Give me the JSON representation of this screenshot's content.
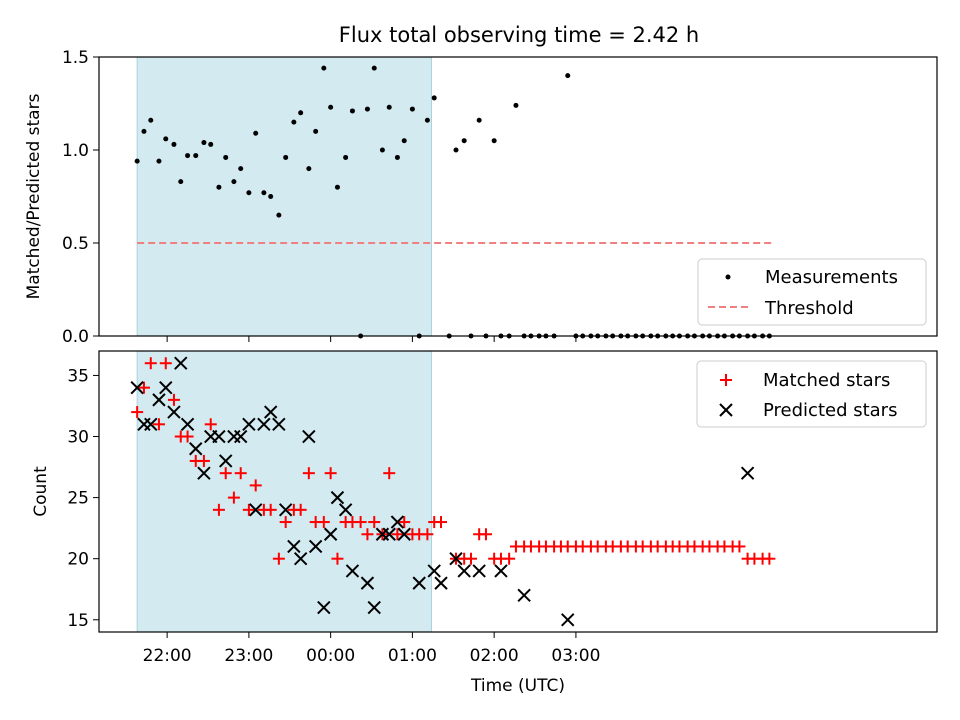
{
  "figure_title": "Flux total observing time = 2.42 h",
  "chart_data": [
    {
      "type": "scatter",
      "ylabel": "Matched/Predicted stars",
      "ylim": [
        0,
        1.5
      ],
      "xlim_minutes": [
        -170,
        445
      ],
      "y_ticks": [
        {
          "value": 0.0,
          "label": "0.0"
        },
        {
          "value": 0.5,
          "label": "0.5"
        },
        {
          "value": 1.0,
          "label": "1.0"
        },
        {
          "value": 1.5,
          "label": "1.5"
        }
      ],
      "shaded_region_minutes": [
        -142,
        74
      ],
      "shade_color": "#d3eaf1",
      "threshold": {
        "name": "Threshold",
        "value": 0.5,
        "color": "#f08080",
        "x_range_minutes": [
          -142,
          324
        ]
      },
      "legend_position": "lower right",
      "series": [
        {
          "name": "Measurements",
          "color": "#000000",
          "points": [
            [
              -142,
              0.94
            ],
            [
              -137,
              1.1
            ],
            [
              -132,
              1.16
            ],
            [
              -126,
              0.94
            ],
            [
              -121,
              1.06
            ],
            [
              -115,
              1.03
            ],
            [
              -110,
              0.83
            ],
            [
              -105,
              0.97
            ],
            [
              -99,
              0.97
            ],
            [
              -93,
              1.04
            ],
            [
              -88,
              1.03
            ],
            [
              -82,
              0.8
            ],
            [
              -77,
              0.96
            ],
            [
              -71,
              0.83
            ],
            [
              -66,
              0.9
            ],
            [
              -60,
              0.77
            ],
            [
              -55,
              1.09
            ],
            [
              -49,
              0.77
            ],
            [
              -44,
              0.75
            ],
            [
              -38,
              0.65
            ],
            [
              -33,
              0.96
            ],
            [
              -27,
              1.15
            ],
            [
              -22,
              1.2
            ],
            [
              -16,
              0.9
            ],
            [
              -11,
              1.1
            ],
            [
              -5,
              1.44
            ],
            [
              0,
              1.23
            ],
            [
              5,
              0.8
            ],
            [
              11,
              0.96
            ],
            [
              16,
              1.21
            ],
            [
              22,
              0.0
            ],
            [
              27,
              1.22
            ],
            [
              32,
              1.44
            ],
            [
              38,
              1.0
            ],
            [
              43,
              1.23
            ],
            [
              49,
              0.96
            ],
            [
              54,
              1.05
            ],
            [
              60,
              1.22
            ],
            [
              65,
              0.0
            ],
            [
              71,
              1.16
            ],
            [
              76,
              1.28
            ],
            [
              87,
              0.0
            ],
            [
              92,
              1.0
            ],
            [
              98,
              1.05
            ],
            [
              103,
              0.0
            ],
            [
              109,
              1.16
            ],
            [
              114,
              0.0
            ],
            [
              120,
              1.05
            ],
            [
              125,
              0.0
            ],
            [
              131,
              0.0
            ],
            [
              136,
              1.24
            ],
            [
              142,
              0.0
            ],
            [
              147,
              0.0
            ],
            [
              153,
              0.0
            ],
            [
              158,
              0.0
            ],
            [
              164,
              0.0
            ],
            [
              174,
              1.4
            ],
            [
              180,
              0.0
            ],
            [
              185,
              0.0
            ],
            [
              191,
              0.0
            ],
            [
              196,
              0.0
            ],
            [
              202,
              0.0
            ],
            [
              207,
              0.0
            ],
            [
              213,
              0.0
            ],
            [
              218,
              0.0
            ],
            [
              224,
              0.0
            ],
            [
              229,
              0.0
            ],
            [
              235,
              0.0
            ],
            [
              240,
              0.0
            ],
            [
              246,
              0.0
            ],
            [
              251,
              0.0
            ],
            [
              256,
              0.0
            ],
            [
              262,
              0.0
            ],
            [
              267,
              0.0
            ],
            [
              273,
              0.0
            ],
            [
              278,
              0.0
            ],
            [
              284,
              0.0
            ],
            [
              289,
              0.0
            ],
            [
              295,
              0.0
            ],
            [
              300,
              0.0
            ],
            [
              306,
              0.0
            ],
            [
              311,
              0.0
            ],
            [
              317,
              0.0
            ],
            [
              322,
              0.0
            ]
          ]
        }
      ]
    },
    {
      "type": "scatter",
      "xlabel": "Time (UTC)",
      "ylabel": "Count",
      "ylim": [
        14,
        37
      ],
      "xlim_minutes": [
        -170,
        445
      ],
      "x_ticks": [
        {
          "value": -120,
          "label": "22:00"
        },
        {
          "value": -60,
          "label": "23:00"
        },
        {
          "value": 0,
          "label": "00:00"
        },
        {
          "value": 60,
          "label": "01:00"
        },
        {
          "value": 120,
          "label": "02:00"
        },
        {
          "value": 180,
          "label": "03:00"
        }
      ],
      "y_ticks": [
        {
          "value": 15,
          "label": "15"
        },
        {
          "value": 20,
          "label": "20"
        },
        {
          "value": 25,
          "label": "25"
        },
        {
          "value": 30,
          "label": "30"
        },
        {
          "value": 35,
          "label": "35"
        }
      ],
      "shaded_region_minutes": [
        -142,
        74
      ],
      "shade_color": "#d3eaf1",
      "legend_position": "upper right",
      "series": [
        {
          "name": "Matched stars",
          "marker": "plus",
          "color": "#ff0000",
          "points": [
            [
              -142,
              32
            ],
            [
              -137,
              34
            ],
            [
              -132,
              36
            ],
            [
              -126,
              31
            ],
            [
              -121,
              36
            ],
            [
              -115,
              33
            ],
            [
              -110,
              30
            ],
            [
              -105,
              30
            ],
            [
              -99,
              28
            ],
            [
              -93,
              28
            ],
            [
              -88,
              31
            ],
            [
              -82,
              24
            ],
            [
              -77,
              27
            ],
            [
              -71,
              25
            ],
            [
              -66,
              27
            ],
            [
              -60,
              24
            ],
            [
              -55,
              26
            ],
            [
              -49,
              24
            ],
            [
              -44,
              24
            ],
            [
              -38,
              20
            ],
            [
              -33,
              23
            ],
            [
              -27,
              24
            ],
            [
              -22,
              24
            ],
            [
              -16,
              27
            ],
            [
              -11,
              23
            ],
            [
              -5,
              23
            ],
            [
              0,
              27
            ],
            [
              5,
              20
            ],
            [
              11,
              23
            ],
            [
              16,
              23
            ],
            [
              22,
              23
            ],
            [
              27,
              22
            ],
            [
              32,
              23
            ],
            [
              38,
              22
            ],
            [
              43,
              27
            ],
            [
              49,
              22
            ],
            [
              54,
              23
            ],
            [
              60,
              22
            ],
            [
              65,
              22
            ],
            [
              71,
              22
            ],
            [
              76,
              23
            ],
            [
              81,
              23
            ],
            [
              92,
              20
            ],
            [
              98,
              20
            ],
            [
              103,
              20
            ],
            [
              109,
              22
            ],
            [
              114,
              22
            ],
            [
              120,
              20
            ],
            [
              125,
              20
            ],
            [
              131,
              20
            ],
            [
              136,
              21
            ],
            [
              142,
              21
            ],
            [
              147,
              21
            ],
            [
              153,
              21
            ],
            [
              158,
              21
            ],
            [
              164,
              21
            ],
            [
              169,
              21
            ],
            [
              174,
              21
            ],
            [
              180,
              21
            ],
            [
              185,
              21
            ],
            [
              191,
              21
            ],
            [
              196,
              21
            ],
            [
              202,
              21
            ],
            [
              207,
              21
            ],
            [
              213,
              21
            ],
            [
              218,
              21
            ],
            [
              224,
              21
            ],
            [
              229,
              21
            ],
            [
              235,
              21
            ],
            [
              240,
              21
            ],
            [
              246,
              21
            ],
            [
              251,
              21
            ],
            [
              256,
              21
            ],
            [
              262,
              21
            ],
            [
              267,
              21
            ],
            [
              273,
              21
            ],
            [
              278,
              21
            ],
            [
              284,
              21
            ],
            [
              289,
              21
            ],
            [
              295,
              21
            ],
            [
              300,
              21
            ],
            [
              306,
              20
            ],
            [
              311,
              20
            ],
            [
              317,
              20
            ],
            [
              322,
              20
            ]
          ]
        },
        {
          "name": "Predicted stars",
          "marker": "x",
          "color": "#000000",
          "points": [
            [
              -142,
              34
            ],
            [
              -137,
              31
            ],
            [
              -132,
              31
            ],
            [
              -126,
              33
            ],
            [
              -121,
              34
            ],
            [
              -115,
              32
            ],
            [
              -110,
              36
            ],
            [
              -105,
              31
            ],
            [
              -99,
              29
            ],
            [
              -93,
              27
            ],
            [
              -88,
              30
            ],
            [
              -82,
              30
            ],
            [
              -77,
              28
            ],
            [
              -71,
              30
            ],
            [
              -66,
              30
            ],
            [
              -60,
              31
            ],
            [
              -55,
              24
            ],
            [
              -49,
              31
            ],
            [
              -44,
              32
            ],
            [
              -38,
              31
            ],
            [
              -33,
              24
            ],
            [
              -27,
              21
            ],
            [
              -22,
              20
            ],
            [
              -16,
              30
            ],
            [
              -11,
              21
            ],
            [
              -5,
              16
            ],
            [
              0,
              22
            ],
            [
              5,
              25
            ],
            [
              11,
              24
            ],
            [
              16,
              19
            ],
            [
              27,
              18
            ],
            [
              32,
              16
            ],
            [
              38,
              22
            ],
            [
              43,
              22
            ],
            [
              49,
              23
            ],
            [
              54,
              22
            ],
            [
              65,
              18
            ],
            [
              76,
              19
            ],
            [
              81,
              18
            ],
            [
              92,
              20
            ],
            [
              98,
              19
            ],
            [
              109,
              19
            ],
            [
              125,
              19
            ],
            [
              142,
              17
            ],
            [
              174,
              15
            ],
            [
              306,
              27
            ]
          ]
        }
      ]
    }
  ]
}
